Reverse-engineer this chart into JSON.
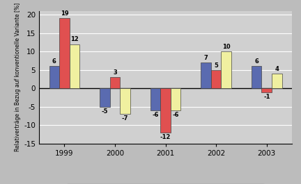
{
  "years": [
    "1999",
    "2000",
    "2001",
    "2002",
    "2003"
  ],
  "konservierend_I": [
    6,
    -5,
    -6,
    7,
    6
  ],
  "konservierend_II": [
    19,
    3,
    -12,
    5,
    -1
  ],
  "konservierend_III": [
    12,
    -7,
    -6,
    10,
    4
  ],
  "colors": {
    "I": "#5a6bb0",
    "II": "#e05050",
    "III": "#f0f0a0"
  },
  "ylim": [
    -15,
    21
  ],
  "yticks": [
    -15,
    -10,
    -5,
    0,
    5,
    10,
    15,
    20
  ],
  "ylabel": "Relativerträge in Bezug auf konventionelle Variante [%]",
  "background_color": "#bcbcbc",
  "plot_bg_color": "#d0d0d0",
  "bar_width": 0.2
}
